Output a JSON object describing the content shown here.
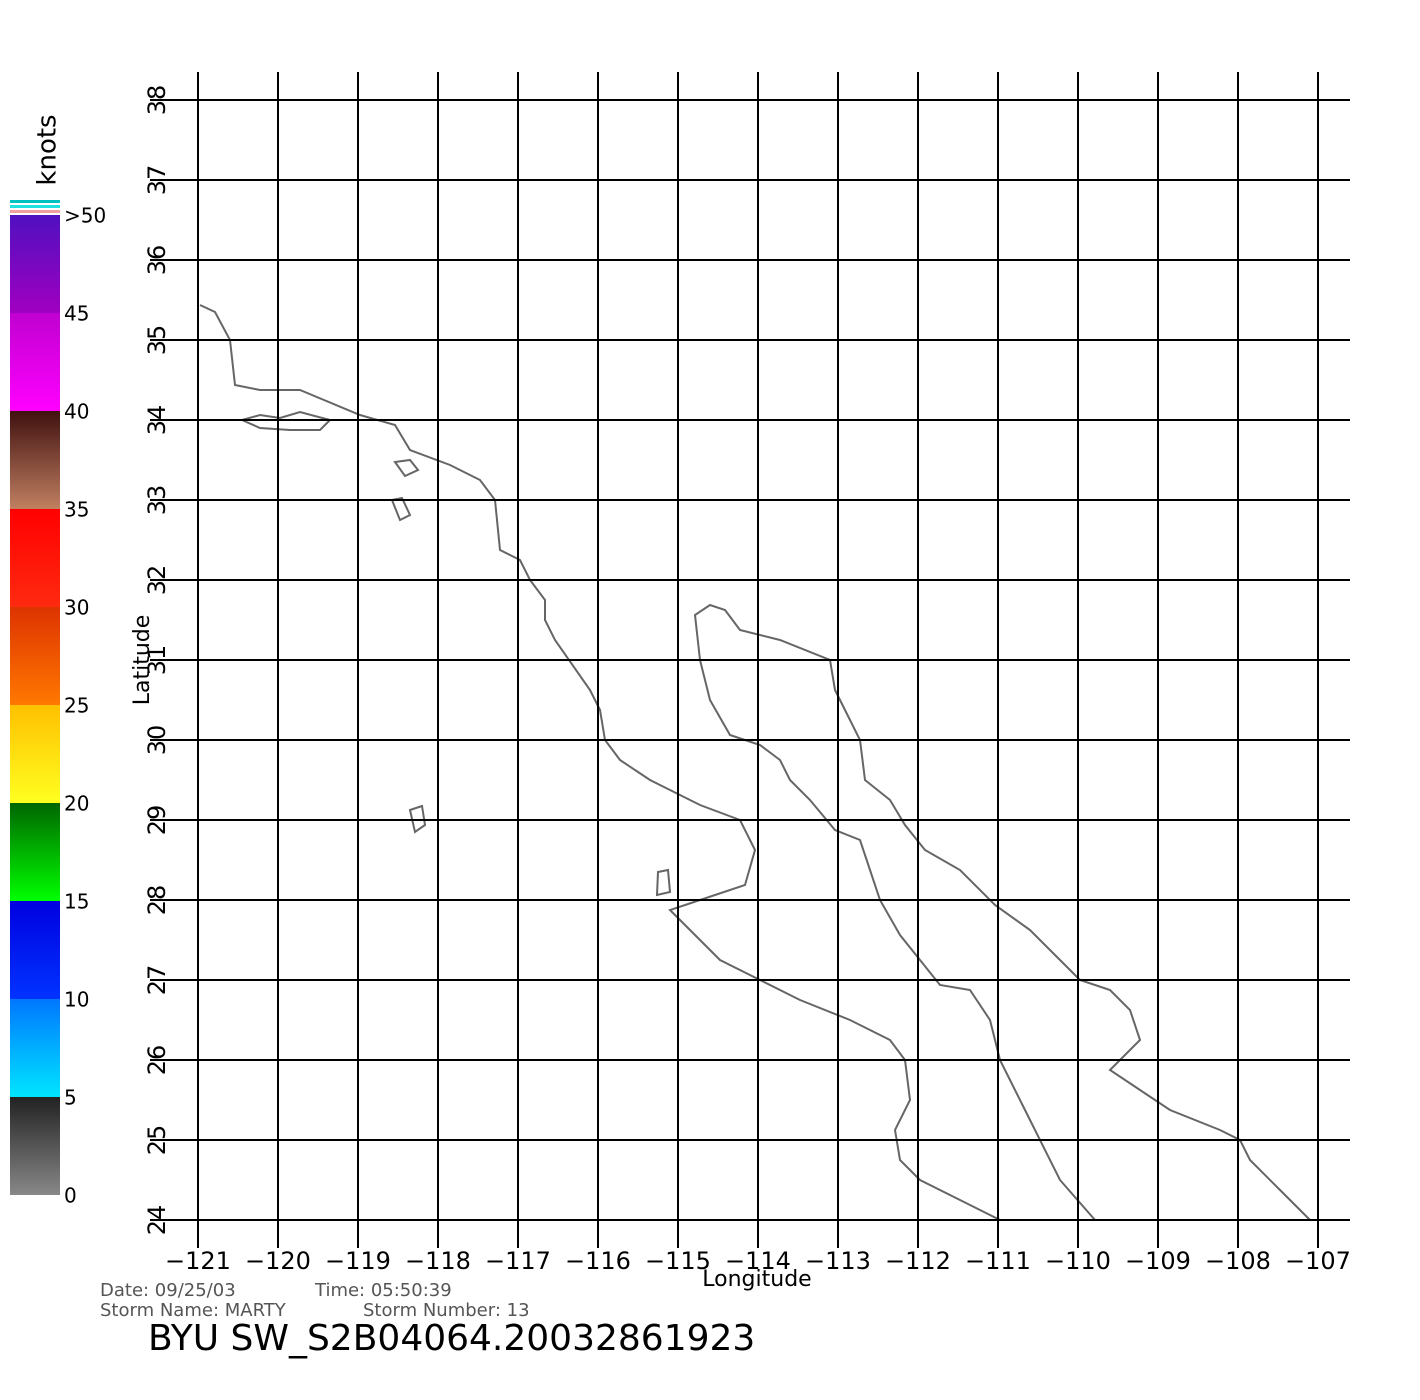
{
  "map": {
    "colorbar": {
      "title": "knots",
      "lim": [
        0,
        50
      ],
      "ticks": [
        0,
        5,
        10,
        15,
        20,
        25,
        30,
        35,
        40,
        45,
        {
          "value": 50,
          "label": ">50"
        }
      ],
      "colors": [
        [
          "#888888",
          "#222222"
        ],
        [
          "#00e5ff",
          "#0077ff"
        ],
        [
          "#0033ff",
          "#0000e0"
        ],
        [
          "#00ff00",
          "#006600"
        ],
        [
          "#ffff20",
          "#ffc000"
        ],
        [
          "#ff7800",
          "#dd3300"
        ],
        [
          "#ff2a10",
          "#ff0000"
        ],
        [
          "#c08060",
          "#401010"
        ],
        [
          "#ff00ff",
          "#c000d0"
        ],
        [
          "#a000c0",
          "#5010c0"
        ]
      ]
    },
    "xlabel": "Longitude",
    "ylabel": "Latitude",
    "xlim": [
      -121,
      -107
    ],
    "ylim": [
      24,
      38
    ],
    "xticks": [
      -121,
      -120,
      -119,
      -118,
      -117,
      -116,
      -115,
      -114,
      -113,
      -112,
      -111,
      -110,
      -109,
      -108,
      -107
    ],
    "yticks": [
      24,
      25,
      26,
      27,
      28,
      29,
      30,
      31,
      32,
      33,
      34,
      35,
      36,
      37,
      38
    ],
    "footer": {
      "date": "Date: 09/25/03",
      "time": "Time: 05:50:39",
      "storm_name": "Storm Name: MARTY",
      "storm_number": "Storm Number: 13",
      "file": "BYU SW_S2B04064.20032861923"
    }
  }
}
